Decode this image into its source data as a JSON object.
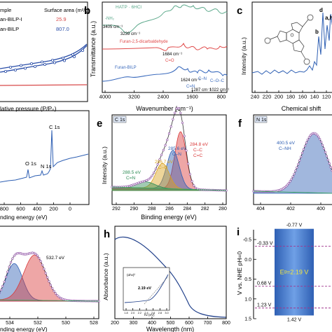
{
  "panels": {
    "a": {
      "legend": {
        "header_left": "mple",
        "header_right": "Surface area (m²/g)",
        "rows": [
          {
            "name": "an-BILP-I",
            "value": "25.9",
            "color": "#d84a4a"
          },
          {
            "name": "an-BILP",
            "value": "807.0",
            "color": "#2a4ea8"
          }
        ]
      },
      "xlabel": "lative pressure (P/P₀)"
    },
    "b": {
      "letter": "b",
      "xlabel": "Wavenumber (cm⁻¹)",
      "ylabel": "Transmittance (a.u.)",
      "xticks": [
        "4000",
        "3200",
        "2400",
        "1600",
        "800"
      ],
      "annotations": {
        "hatp": "HATP · 6HCl",
        "nh2": "-NH₂",
        "w3405": "3405 cm⁻¹",
        "w3239": "3239 cm⁻¹",
        "furan_dial": "Furan-2,5-dicarbaldehyde",
        "w1684": "1684 cm⁻¹",
        "co": "C=O",
        "furan_bilp": "Furan-BILP",
        "w1624": "1624 cm⁻¹",
        "cn": "C=N",
        "cn2": "C–N",
        "coc": "C–O–C",
        "w1287": "1287 cm⁻¹",
        "w1022": "1022 cm⁻¹"
      }
    },
    "c": {
      "letter": "c",
      "xlabel": "Chemical shift",
      "ylabel": "Intensity (a.u.)",
      "xticks": [
        "240",
        "220",
        "200",
        "180",
        "160",
        "140",
        "120"
      ],
      "peak_labels": {
        "d": "d",
        "b": "b",
        "ah": "a,h"
      }
    },
    "d": {
      "xlabel": "nding energy (eV)",
      "xticks": [
        "800",
        "600",
        "400",
        "200",
        "0"
      ],
      "peak_labels": {
        "o1s": "O 1s",
        "n1s": "N 1s",
        "c1s": "C 1s"
      }
    },
    "e": {
      "letter": "e",
      "tag": "C 1s",
      "xlabel": "Binding energy (eV)",
      "ylabel": "Intensity (a.u.)",
      "xticks": [
        "292",
        "290",
        "288",
        "286",
        "284",
        "282",
        "280"
      ],
      "peaks": [
        {
          "ev": "284.8 eV",
          "bond": "C–C",
          "bond2": "C=C",
          "color": "#d93a3a"
        },
        {
          "ev": "285.6 eV",
          "bond": "C–N",
          "color": "#2e5fb3"
        },
        {
          "ev": "286.7 eV",
          "bond": "C–O",
          "color": "#d9a11c"
        },
        {
          "ev": "288.5 eV",
          "bond": "C=N",
          "color": "#2e8c54"
        }
      ]
    },
    "f": {
      "letter": "f",
      "tag": "N 1s",
      "xticks": [
        "404",
        "402",
        "400"
      ],
      "peaks": [
        {
          "ev": "400.5 eV",
          "bond": "C–NH",
          "color": "#2e5fb3"
        }
      ]
    },
    "g": {
      "xlabel": "nding energy (eV)",
      "xticks": [
        "534",
        "532",
        "530",
        "528"
      ],
      "peak_label": "532.7 eV"
    },
    "h": {
      "letter": "h",
      "xlabel": "Wavelength (nm)",
      "ylabel": "Absorbance (a.u.)",
      "xticks": [
        "200",
        "300",
        "400",
        "500",
        "600",
        "700",
        "800"
      ],
      "inset": {
        "gap_label": "2.19 eV",
        "ylabel": "(αhν)²",
        "xlabel": "hν (eV)",
        "xticks": [
          "1.8",
          "2.0",
          "2.2",
          "2.4",
          "2.6",
          "2.8",
          "3.0"
        ]
      }
    },
    "i": {
      "letter": "i",
      "ylabel": "V vs. NHE pH=0",
      "yticks": [
        "-0.5",
        "0.0",
        "0.5",
        "1.0",
        "1.5"
      ],
      "levels": [
        "-0.33 V",
        "0.68 V",
        "1.23 V"
      ],
      "cb": "-0.77 V",
      "vb": "1.42 V",
      "gap": "Eᵍ=2.19 V"
    }
  },
  "chart_data": [
    {
      "panel": "a",
      "type": "line",
      "xlabel": "lative pressure (P/P₀)",
      "series": [
        {
          "name": "an-BILP-I",
          "surface_area": 25.9
        },
        {
          "name": "an-BILP",
          "surface_area": 807.0
        }
      ]
    },
    {
      "panel": "b",
      "type": "line",
      "xlabel": "Wavenumber (cm⁻¹)",
      "ylabel": "Transmittance (a.u.)",
      "xlim": [
        4000,
        800
      ],
      "series": [
        {
          "name": "HATP · 6HCl",
          "marked": [
            3405,
            3239
          ]
        },
        {
          "name": "Furan-2,5-dicarbaldehyde",
          "marked": [
            1684
          ]
        },
        {
          "name": "Furan-BILP",
          "marked": [
            1624,
            1287,
            1022
          ]
        }
      ]
    },
    {
      "panel": "c",
      "type": "line",
      "xlabel": "Chemical shift",
      "ylabel": "Intensity (a.u.)",
      "xlim": [
        245,
        120
      ],
      "peaks": [
        {
          "label": "d",
          "x": 143
        },
        {
          "label": "b",
          "x": 131
        },
        {
          "label": "a,h",
          "x": 122
        }
      ]
    },
    {
      "panel": "d",
      "type": "line",
      "xlabel": "nding energy (eV)",
      "xlim": [
        900,
        0
      ],
      "peaks": [
        {
          "label": "O 1s",
          "x": 532,
          "y": 0.12
        },
        {
          "label": "N 1s",
          "x": 400,
          "y": 0.09
        },
        {
          "label": "C 1s",
          "x": 285,
          "y": 1.0
        }
      ]
    },
    {
      "panel": "e",
      "type": "line",
      "xlabel": "Binding energy (eV)",
      "ylabel": "Intensity (a.u.)",
      "xlim": [
        292,
        280
      ],
      "components": [
        {
          "name": "C–C/C=C",
          "center": 284.8,
          "height": 0.82,
          "width": 0.6
        },
        {
          "name": "C–N",
          "center": 285.6,
          "height": 0.55,
          "width": 0.65
        },
        {
          "name": "C–O",
          "center": 286.7,
          "height": 0.36,
          "width": 0.7
        },
        {
          "name": "C=N",
          "center": 288.5,
          "height": 0.09,
          "width": 1.0
        }
      ]
    },
    {
      "panel": "f",
      "type": "line",
      "xlim": [
        404,
        399.3
      ],
      "components": [
        {
          "name": "C–NH",
          "center": 400.5,
          "height": 0.85,
          "width": 0.75
        }
      ]
    },
    {
      "panel": "g",
      "type": "line",
      "xlabel": "nding energy (eV)",
      "xlim": [
        535.3,
        528
      ],
      "components": [
        {
          "center": 534.2,
          "height": 0.58,
          "width": 0.6
        },
        {
          "center": 532.7,
          "height": 0.72,
          "width": 0.8
        }
      ]
    },
    {
      "panel": "h",
      "type": "line",
      "xlabel": "Wavelength (nm)",
      "ylabel": "Absorbance (a.u.)",
      "xlim": [
        200,
        800
      ],
      "inset": {
        "xlabel": "hν (eV)",
        "band_gap_eV": 2.19
      }
    },
    {
      "panel": "i",
      "type": "bar",
      "ylabel": "V vs. NHE pH=0",
      "ylim": [
        -0.5,
        1.5
      ],
      "conduction_band": -0.77,
      "valence_band": 1.42,
      "band_gap_eV": 2.19,
      "reference_levels": [
        -0.33,
        0.68,
        1.23
      ]
    }
  ]
}
